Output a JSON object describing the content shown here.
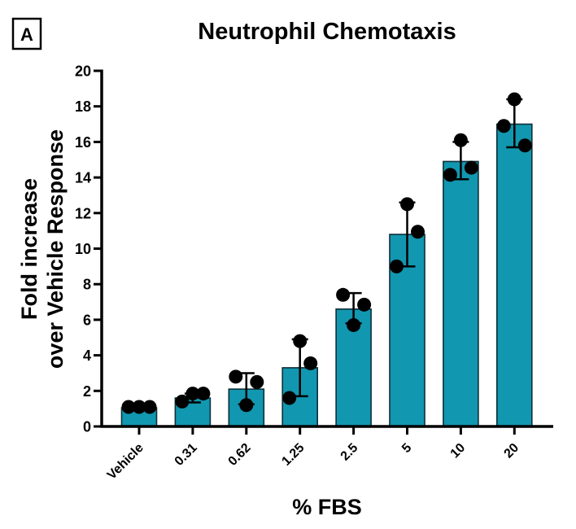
{
  "panel_label": "A",
  "chart_data": {
    "type": "bar",
    "title": "Neutrophil Chemotaxis",
    "xlabel": "% FBS",
    "ylabel_lines": [
      "Fold increase",
      "over Vehicle Response"
    ],
    "categories": [
      "Vehicle",
      "0.31",
      "0.62",
      "1.25",
      "2.5",
      "5",
      "10",
      "20"
    ],
    "values": [
      1.05,
      1.6,
      2.1,
      3.3,
      6.6,
      10.8,
      14.9,
      17.0
    ],
    "error_low": [
      1.0,
      1.35,
      1.25,
      1.7,
      5.8,
      9.0,
      13.9,
      15.7
    ],
    "error_high": [
      1.1,
      1.85,
      3.0,
      4.9,
      7.5,
      12.6,
      16.0,
      18.4
    ],
    "points": [
      [
        1.1,
        1.1,
        1.1
      ],
      [
        1.4,
        1.85,
        1.85
      ],
      [
        2.8,
        1.2,
        2.5
      ],
      [
        1.6,
        4.8,
        3.55
      ],
      [
        7.4,
        5.7,
        6.85
      ],
      [
        9.0,
        12.5,
        10.95
      ],
      [
        14.15,
        16.1,
        14.55
      ],
      [
        16.9,
        18.4,
        15.8
      ]
    ],
    "ylim": [
      0,
      20
    ],
    "yticks": [
      0,
      2,
      4,
      6,
      8,
      10,
      12,
      14,
      16,
      18,
      20
    ],
    "grid": false,
    "legend": "none",
    "colors": {
      "bar": "#1297b0",
      "bar_edge": "#0d2f38",
      "points": "#000000",
      "axis": "#000000"
    }
  }
}
